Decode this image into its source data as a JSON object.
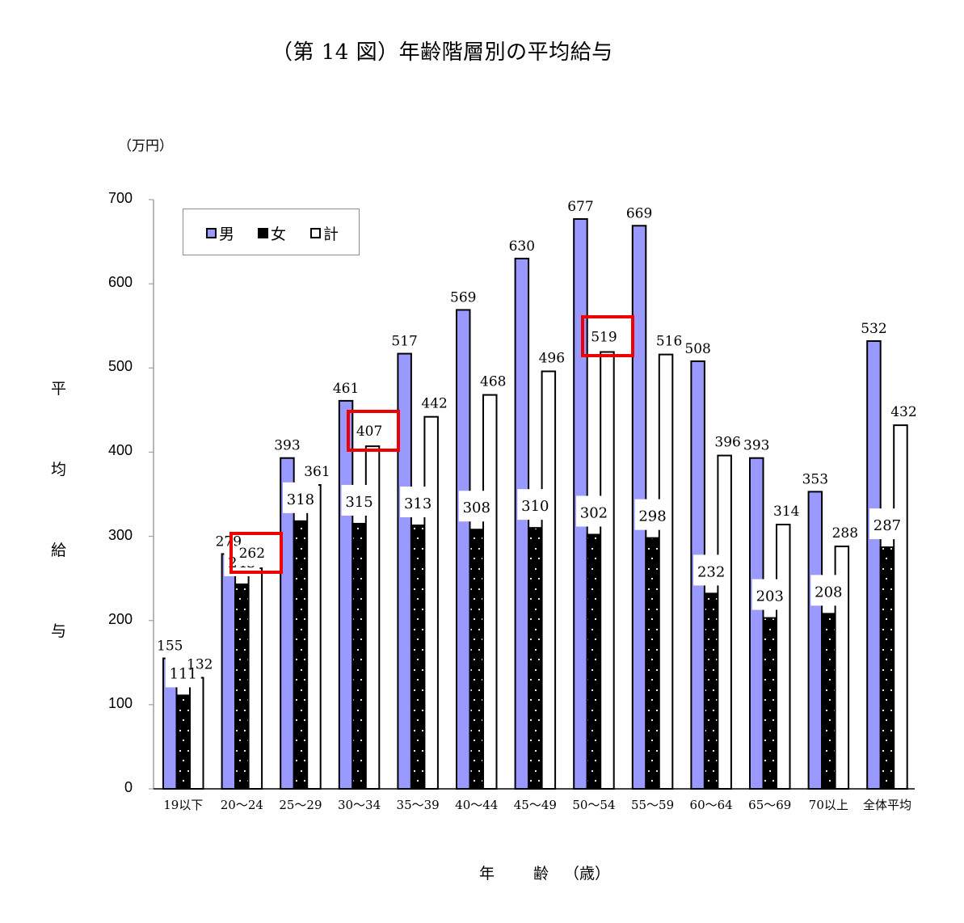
{
  "title": "（第 14 図）年齢階層別の平均給与",
  "unit_label": "（万円）",
  "y_axis_label_chars": [
    "平",
    "均",
    "給",
    "与"
  ],
  "x_axis_label": [
    "年",
    "齢",
    "（歳）"
  ],
  "legend": [
    {
      "label": "男",
      "color": "#9999ff",
      "pattern": "solid"
    },
    {
      "label": "女",
      "color": "#000000",
      "pattern": "dotted"
    },
    {
      "label": "計",
      "color": "#ffffff",
      "pattern": "solid"
    }
  ],
  "highlights": [
    "20〜24 計 262",
    "30〜34 計 407",
    "50〜54 計 519"
  ],
  "chart_data": {
    "type": "bar",
    "title": "（第 14 図）年齢階層別の平均給与",
    "xlabel": "年齢（歳）",
    "ylabel": "平均給与（万円）",
    "ylim": [
      0,
      700
    ],
    "yticks": [
      0,
      100,
      200,
      300,
      400,
      500,
      600,
      700
    ],
    "grid": false,
    "legend_position": "top-left inside",
    "categories": [
      "19以下",
      "20〜24",
      "25〜29",
      "30〜34",
      "35〜39",
      "40〜44",
      "45〜49",
      "50〜54",
      "55〜59",
      "60〜64",
      "65〜69",
      "70以上",
      "全体平均"
    ],
    "series": [
      {
        "name": "男",
        "color": "#9999ff",
        "values": [
          155,
          279,
          393,
          461,
          517,
          569,
          630,
          677,
          669,
          508,
          393,
          353,
          532
        ]
      },
      {
        "name": "女",
        "color": "#000000",
        "values": [
          111,
          243,
          318,
          315,
          313,
          308,
          310,
          302,
          298,
          232,
          203,
          208,
          287
        ]
      },
      {
        "name": "計",
        "color": "#ffffff",
        "values": [
          132,
          262,
          361,
          407,
          442,
          468,
          496,
          519,
          516,
          396,
          314,
          288,
          432
        ]
      }
    ],
    "highlighted_points": [
      {
        "category": "20〜24",
        "series": "計",
        "value": 262
      },
      {
        "category": "30〜34",
        "series": "計",
        "value": 407
      },
      {
        "category": "50〜54",
        "series": "計",
        "value": 519
      }
    ]
  }
}
